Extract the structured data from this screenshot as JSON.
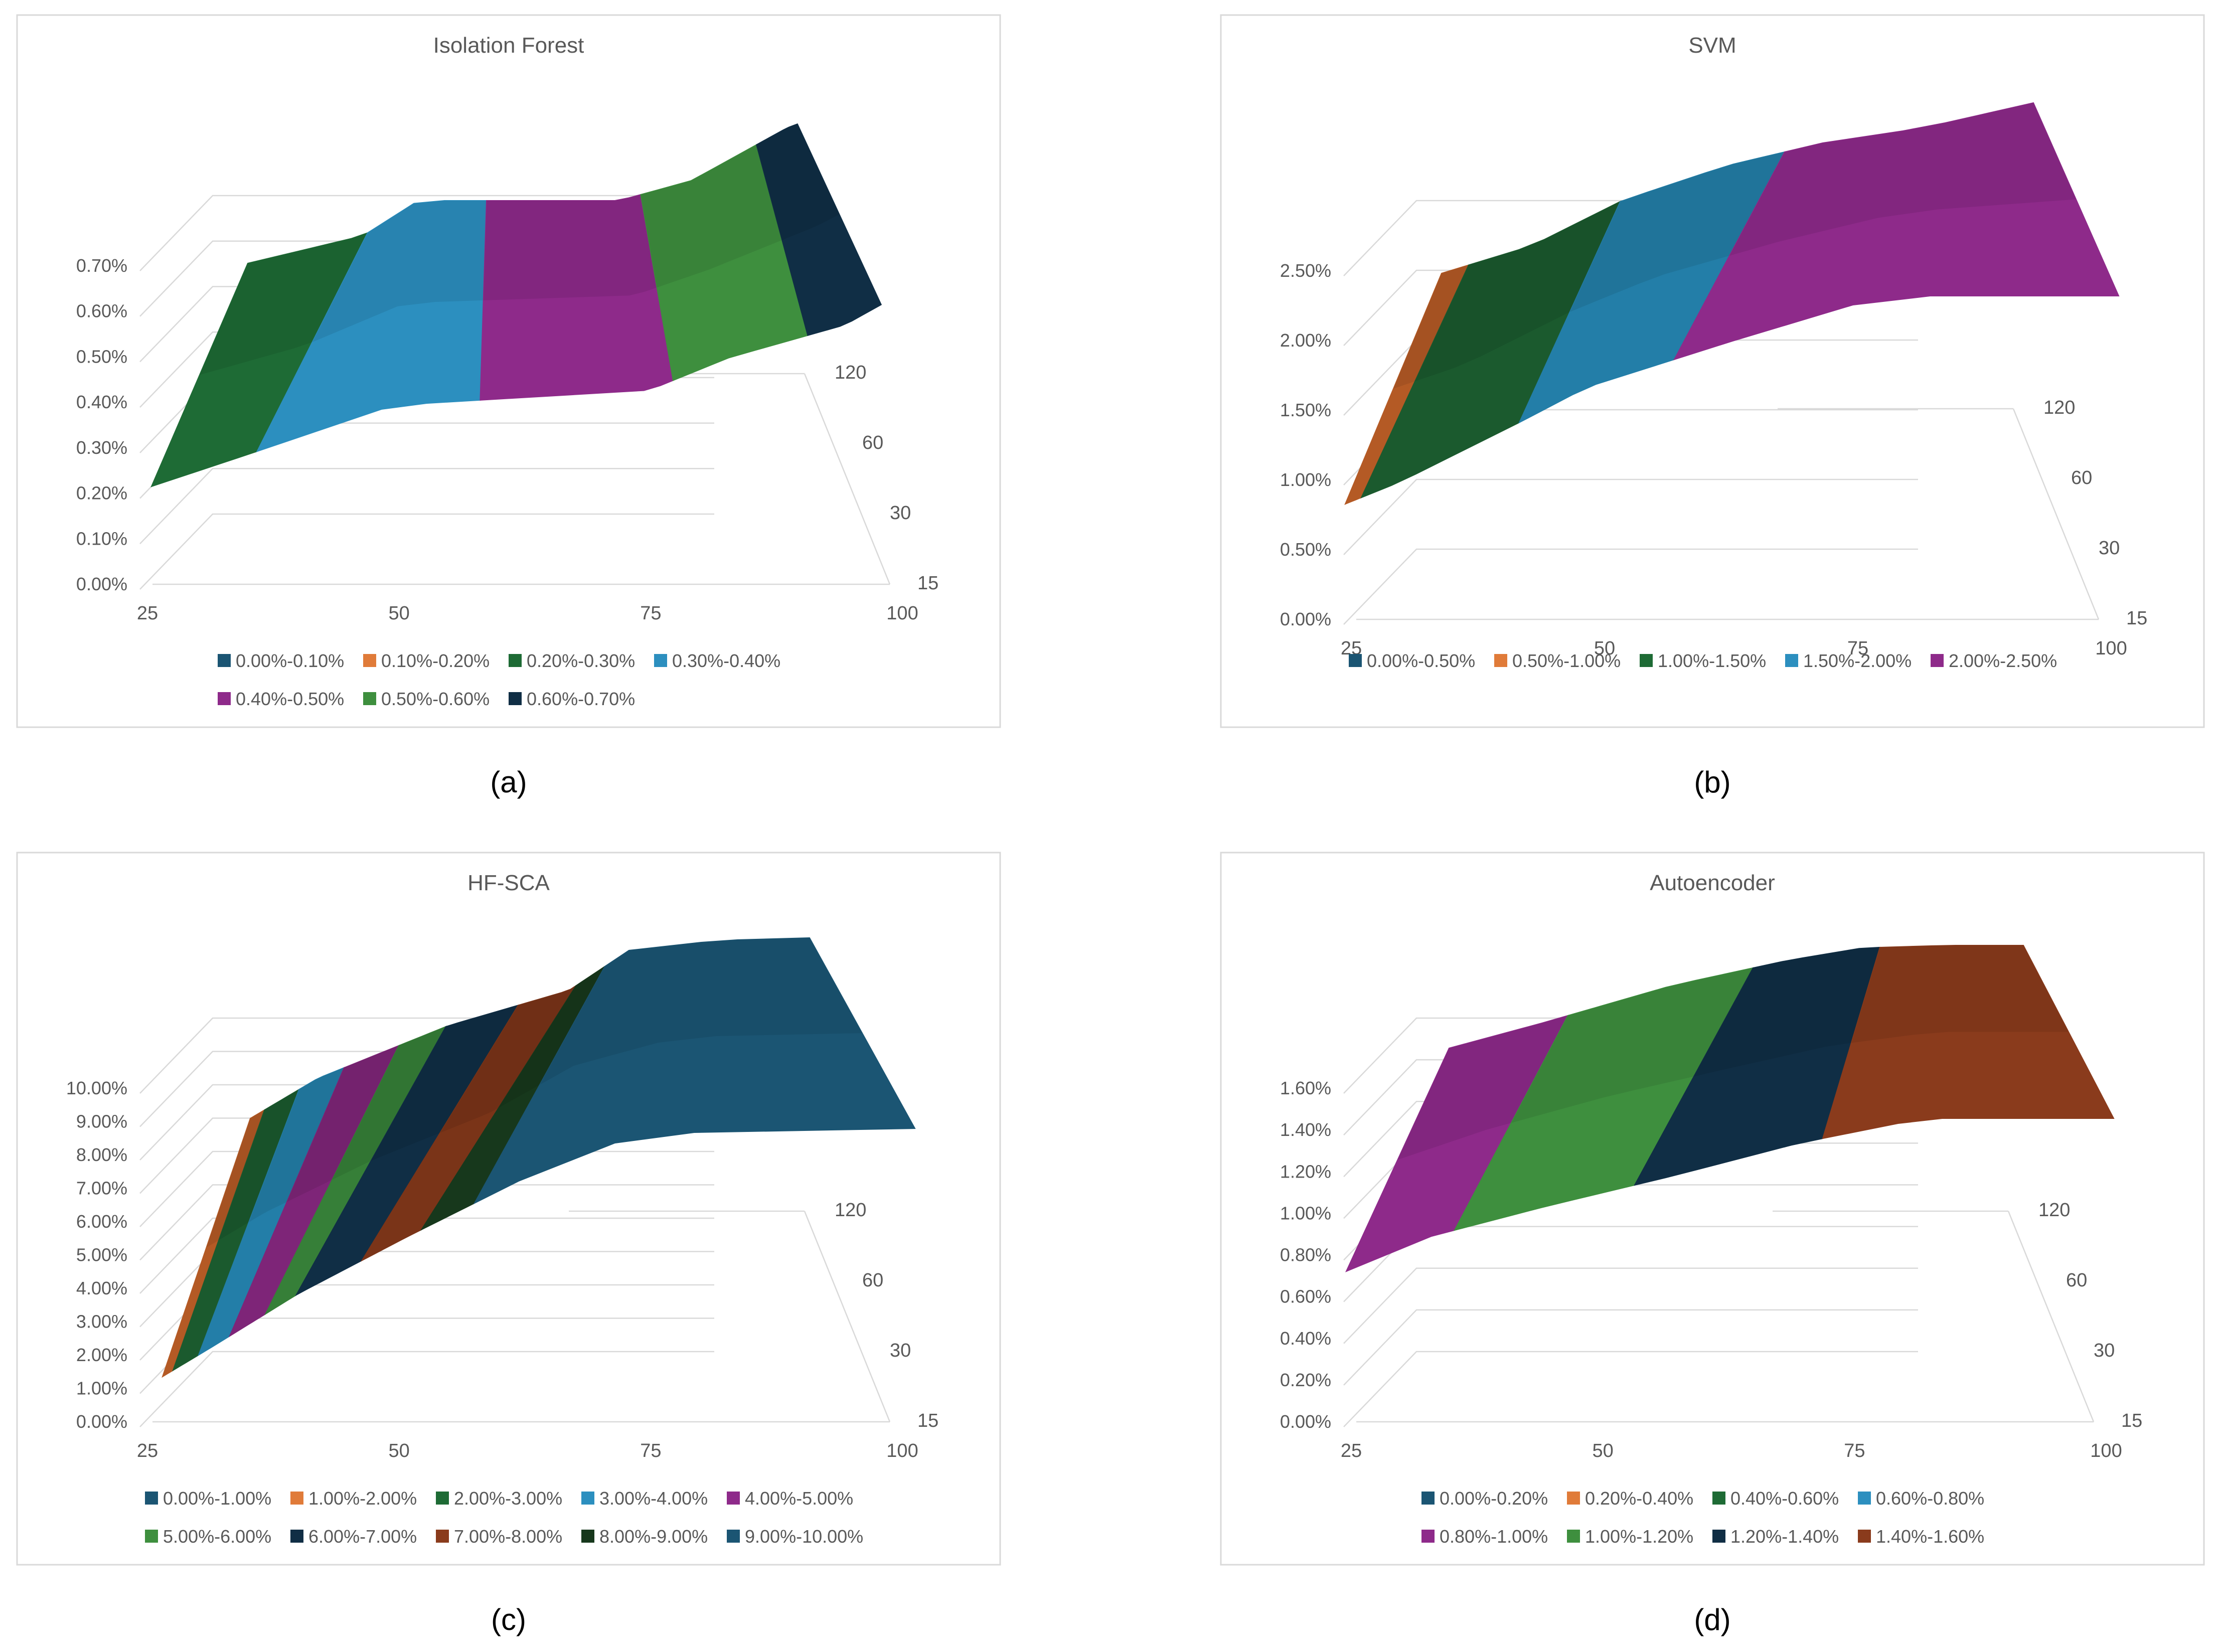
{
  "chart_data": [
    {
      "type": "surface3d",
      "title": "Isolation Forest",
      "caption": "(a)",
      "x_ticks": [
        "25",
        "50",
        "75",
        "100"
      ],
      "y_ticks": [
        "15",
        "30",
        "60",
        "120"
      ],
      "z_ticks": [
        "0.00%",
        "0.10%",
        "0.20%",
        "0.30%",
        "0.40%",
        "0.50%",
        "0.60%",
        "0.70%"
      ],
      "zlim": [
        0,
        0.7
      ],
      "legend": [
        {
          "label": "0.00%-0.10%",
          "color": "#1b5573"
        },
        {
          "label": "0.10%-0.20%",
          "color": "#e07b39"
        },
        {
          "label": "0.20%-0.30%",
          "color": "#1e6b35"
        },
        {
          "label": "0.30%-0.40%",
          "color": "#2c8fbf"
        },
        {
          "label": "0.40%-0.50%",
          "color": "#8e2a8a"
        },
        {
          "label": "0.50%-0.60%",
          "color": "#3e8f3e"
        },
        {
          "label": "0.60%-0.70%",
          "color": "#102e45"
        }
      ],
      "bands": [
        {
          "range": "0.20%-0.30%",
          "color": "#1e6b35"
        },
        {
          "range": "0.30%-0.40%",
          "color": "#2c8fbf"
        },
        {
          "range": "0.40%-0.50%",
          "color": "#8e2a8a"
        },
        {
          "range": "0.50%-0.60%",
          "color": "#3e8f3e"
        },
        {
          "range": "0.60%-0.70%",
          "color": "#102e45"
        }
      ]
    },
    {
      "type": "surface3d",
      "title": "SVM",
      "caption": "(b)",
      "x_ticks": [
        "25",
        "50",
        "75",
        "100"
      ],
      "y_ticks": [
        "15",
        "30",
        "60",
        "120"
      ],
      "z_ticks": [
        "0.00%",
        "0.50%",
        "1.00%",
        "1.50%",
        "2.00%",
        "2.50%"
      ],
      "zlim": [
        0,
        2.5
      ],
      "legend": [
        {
          "label": "0.00%-0.50%",
          "color": "#1b5573"
        },
        {
          "label": "0.50%-1.00%",
          "color": "#e07b39"
        },
        {
          "label": "1.00%-1.50%",
          "color": "#1e6b35"
        },
        {
          "label": "1.50%-2.00%",
          "color": "#2c8fbf"
        },
        {
          "label": "2.00%-2.50%",
          "color": "#8e2a8a"
        }
      ],
      "bands": [
        {
          "range": "0.50%-1.00%",
          "color": "#b45a25"
        },
        {
          "range": "1.00%-1.50%",
          "color": "#1b5a2e"
        },
        {
          "range": "1.50%-2.00%",
          "color": "#237ea8"
        },
        {
          "range": "2.00%-2.50%",
          "color": "#8e2a8a"
        }
      ]
    },
    {
      "type": "surface3d",
      "title": "HF-SCA",
      "caption": "(c)",
      "x_ticks": [
        "25",
        "50",
        "75",
        "100"
      ],
      "y_ticks": [
        "15",
        "30",
        "60",
        "120"
      ],
      "z_ticks": [
        "0.00%",
        "1.00%",
        "2.00%",
        "3.00%",
        "4.00%",
        "5.00%",
        "6.00%",
        "7.00%",
        "8.00%",
        "9.00%",
        "10.00%"
      ],
      "zlim": [
        0,
        10.0
      ],
      "legend": [
        {
          "label": "0.00%-1.00%",
          "color": "#1b5573"
        },
        {
          "label": "1.00%-2.00%",
          "color": "#e07b39"
        },
        {
          "label": "2.00%-3.00%",
          "color": "#1e6b35"
        },
        {
          "label": "3.00%-4.00%",
          "color": "#2c8fbf"
        },
        {
          "label": "4.00%-5.00%",
          "color": "#8e2a8a"
        },
        {
          "label": "5.00%-6.00%",
          "color": "#3e8f3e"
        },
        {
          "label": "6.00%-7.00%",
          "color": "#102e45"
        },
        {
          "label": "7.00%-8.00%",
          "color": "#8a3b1c"
        },
        {
          "label": "8.00%-9.00%",
          "color": "#17381c"
        },
        {
          "label": "9.00%-10.00%",
          "color": "#1b5573"
        }
      ],
      "bands": [
        {
          "range": "1.00%-2.00%",
          "color": "#b45a25"
        },
        {
          "range": "2.00%-3.00%",
          "color": "#1b5a2e"
        },
        {
          "range": "3.00%-4.00%",
          "color": "#237ea8"
        },
        {
          "range": "4.00%-5.00%",
          "color": "#7e2578"
        },
        {
          "range": "5.00%-6.00%",
          "color": "#367f38"
        },
        {
          "range": "6.00%-7.00%",
          "color": "#102e45"
        },
        {
          "range": "7.00%-8.00%",
          "color": "#7a3418"
        },
        {
          "range": "8.00%-9.00%",
          "color": "#17381c"
        },
        {
          "range": "9.00%-10.00%",
          "color": "#1b5573"
        }
      ]
    },
    {
      "type": "surface3d",
      "title": "Autoencoder",
      "caption": "(d)",
      "x_ticks": [
        "25",
        "50",
        "75",
        "100"
      ],
      "y_ticks": [
        "15",
        "30",
        "60",
        "120"
      ],
      "z_ticks": [
        "0.00%",
        "0.20%",
        "0.40%",
        "0.60%",
        "0.80%",
        "1.00%",
        "1.20%",
        "1.40%",
        "1.60%"
      ],
      "zlim": [
        0,
        1.6
      ],
      "legend": [
        {
          "label": "0.00%-0.20%",
          "color": "#1b5573"
        },
        {
          "label": "0.20%-0.40%",
          "color": "#e07b39"
        },
        {
          "label": "0.40%-0.60%",
          "color": "#1e6b35"
        },
        {
          "label": "0.60%-0.80%",
          "color": "#2c8fbf"
        },
        {
          "label": "0.80%-1.00%",
          "color": "#8e2a8a"
        },
        {
          "label": "1.00%-1.20%",
          "color": "#3e8f3e"
        },
        {
          "label": "1.20%-1.40%",
          "color": "#102e45"
        },
        {
          "label": "1.40%-1.60%",
          "color": "#8a3b1c"
        }
      ],
      "bands": [
        {
          "range": "0.80%-1.00%",
          "color": "#8e2a8a"
        },
        {
          "range": "1.00%-1.20%",
          "color": "#3e8f3e"
        },
        {
          "range": "1.20%-1.40%",
          "color": "#102e45"
        },
        {
          "range": "1.40%-1.60%",
          "color": "#8a3b1c"
        }
      ]
    }
  ]
}
